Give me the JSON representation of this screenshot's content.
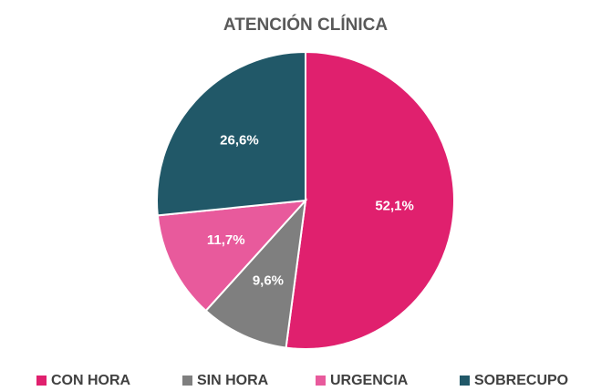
{
  "chart_data": {
    "type": "pie",
    "title": "ATENCIÓN CLÍNICA",
    "categories": [
      "CON HORA",
      "SIN HORA",
      "URGENCIA",
      "SOBRECUPO"
    ],
    "values": [
      52.1,
      9.6,
      11.7,
      26.6
    ],
    "value_labels": [
      "52,1%",
      "9,6%",
      "11,7%",
      "26,6%"
    ],
    "colors": [
      "#e0206e",
      "#7f7f7f",
      "#e85a9c",
      "#215868"
    ],
    "legend": "bottom"
  }
}
